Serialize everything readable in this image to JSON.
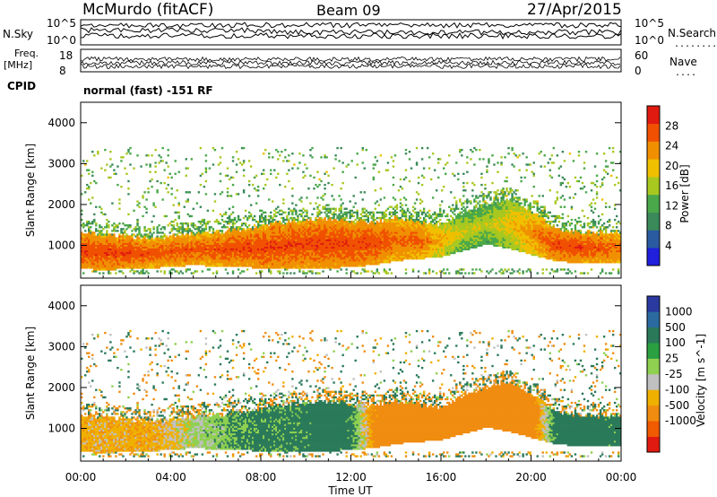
{
  "header": {
    "site": "McMurdo (fitACF)",
    "beam": "Beam 09",
    "date": "27/Apr/2015"
  },
  "top_panel": {
    "nsky_label": "N.Sky",
    "nsky_ticks": [
      "10^5",
      "10^0"
    ],
    "nsearch_label": "N.Search",
    "nsearch_dots": "........",
    "nsearch_ticks": [
      "10^5",
      "10^0"
    ],
    "freq_label": "Freq.",
    "freq_unit": "[MHz]",
    "freq_ticks": [
      "18",
      "8"
    ],
    "nave_label": "Nave",
    "nave_dots": "....",
    "nave_ticks": [
      "60",
      "0"
    ],
    "cpid_label": "CPID",
    "cpid_value": "normal (fast) -151 RF"
  },
  "colors": {
    "power": [
      "#1f1fdc",
      "#2a5aa0",
      "#3a8a5a",
      "#4aa84a",
      "#a8c820",
      "#f0c000",
      "#f09000",
      "#f05000",
      "#e01a10"
    ],
    "velocity": [
      "#e01a10",
      "#f05a00",
      "#f08c10",
      "#f0b000",
      "#c0c0c0",
      "#8fd050",
      "#2aa040",
      "#2a7a5a",
      "#2a6aa0",
      "#2a3aa0"
    ]
  },
  "chart_data": [
    {
      "type": "heatmap",
      "name": "power",
      "ylabel": "Slant Range [km]",
      "xlabel": "",
      "ylim": [
        200,
        4500
      ],
      "yticks": [
        "1000",
        "2000",
        "3000",
        "4000"
      ],
      "colorbar_label": "Power [dB]",
      "colorbar_ticks": [
        "4",
        "8",
        "12",
        "16",
        "20",
        "24",
        "28"
      ],
      "colorbar_range": [
        0,
        32
      ],
      "x": [
        0,
        1,
        2,
        3,
        4,
        5,
        6,
        7,
        8,
        9,
        10,
        11,
        12,
        13,
        14,
        15,
        16,
        17,
        18,
        19,
        20,
        21,
        22,
        23,
        24
      ],
      "band_bottom_km": [
        400,
        380,
        400,
        420,
        450,
        500,
        460,
        480,
        400,
        400,
        420,
        420,
        450,
        500,
        600,
        650,
        700,
        850,
        1000,
        900,
        750,
        600,
        550,
        550,
        550
      ],
      "band_top_km": [
        1300,
        1250,
        1200,
        1150,
        1200,
        1250,
        1300,
        1350,
        1450,
        1550,
        1600,
        1650,
        1550,
        1550,
        1650,
        1550,
        1500,
        1800,
        2000,
        2100,
        1800,
        1400,
        1300,
        1300,
        1300
      ],
      "band_power_db": [
        28,
        28,
        28,
        27,
        27,
        27,
        27,
        28,
        28,
        28,
        28,
        28,
        28,
        28,
        26,
        26,
        22,
        18,
        17,
        20,
        24,
        28,
        28,
        27,
        26
      ],
      "scatter_range_km": [
        1500,
        3400
      ]
    },
    {
      "type": "heatmap",
      "name": "velocity",
      "ylabel": "Slant Range [km]",
      "xlabel": "Time UT",
      "ylim": [
        200,
        4500
      ],
      "yticks": [
        "1000",
        "2000",
        "3000",
        "4000"
      ],
      "xticks": [
        "00:00",
        "04:00",
        "08:00",
        "12:00",
        "16:00",
        "20:00",
        "00:00"
      ],
      "colorbar_label": "Velocity [m s^-1]",
      "colorbar_ticks": [
        "1000",
        "500",
        "100",
        "25",
        "-25",
        "-100",
        "-500",
        "-1000"
      ],
      "colorbar_range": [
        -1250,
        1250
      ],
      "x": [
        0,
        1,
        2,
        3,
        4,
        5,
        6,
        7,
        8,
        9,
        10,
        11,
        12,
        13,
        14,
        15,
        16,
        17,
        18,
        19,
        20,
        21,
        22,
        23,
        24
      ],
      "band_velocity_ms": [
        -80,
        -60,
        -70,
        -80,
        -40,
        30,
        60,
        120,
        140,
        130,
        150,
        180,
        140,
        -150,
        -180,
        -200,
        -220,
        -260,
        -260,
        -220,
        -200,
        150,
        180,
        160,
        150
      ],
      "scatter_range_km": [
        1500,
        3400
      ]
    }
  ]
}
